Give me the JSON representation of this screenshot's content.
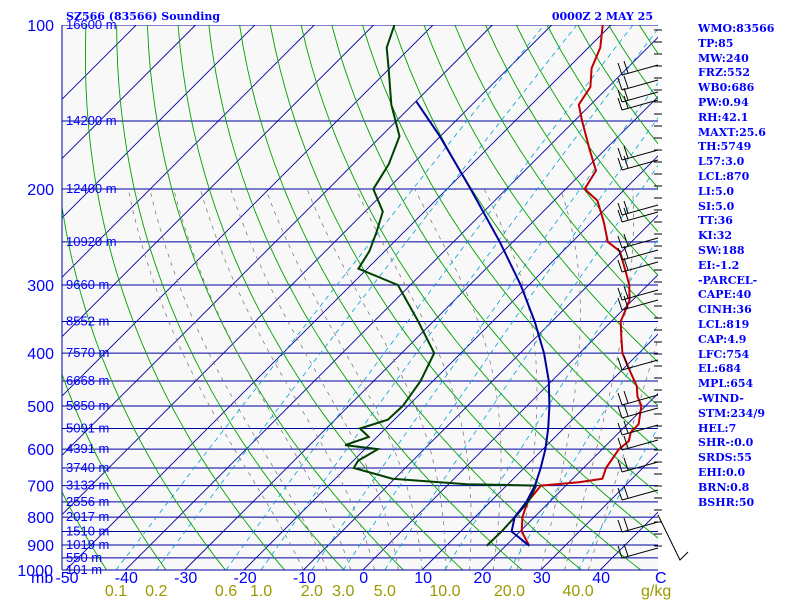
{
  "header": {
    "station": "SZ566 (83566) Sounding",
    "time": "0000Z  2 MAY 25"
  },
  "indices": [
    "WMO:83566",
    "TP:85",
    "MW:240",
    "FRZ:552",
    "WB0:686",
    "PW:0.94",
    "RH:42.1",
    "MAXT:25.6",
    "TH:5749",
    "L57:3.0",
    "LCL:870",
    "LI:5.0",
    "SI:5.0",
    "TT:36",
    "KI:32",
    "SW:188",
    "EI:-1.2",
    "-PARCEL-",
    "CAPE:40",
    "CINH:36",
    "LCL:819",
    "CAP:4.9",
    "LFC:754",
    "EL:684",
    "MPL:654",
    "-WIND-",
    "STM:234/9",
    "HEL:7",
    "SHR-:0.0",
    "SRDS:55",
    "EHI:0.0",
    "BRN:0.8",
    "BSHR:50"
  ],
  "axes": {
    "corner_unit": "mb",
    "right_unit": "C",
    "mix_unit": "g/kg",
    "pressure_labels": [
      "100",
      "200",
      "300",
      "400",
      "500",
      "600",
      "700",
      "800",
      "900",
      "1000"
    ],
    "temperature_labels": [
      "-50",
      "-40",
      "-30",
      "-20",
      "-10",
      "0",
      "10",
      "20",
      "30",
      "40"
    ],
    "mixing_ratio_labels": [
      "0.1",
      "0.2",
      "0.6",
      "1.0",
      "2.0",
      "3.0",
      "5.0",
      "10.0",
      "20.0",
      "40.0"
    ]
  },
  "colors": {
    "temperature": "#c00000",
    "dewpoint": "#004000",
    "parcel": "#0000a0",
    "isobar": "#0000a0",
    "isotherm": "#0000a0",
    "dry_adiabat": "#00a000",
    "moist_adiabat": "#808080",
    "mixing_ratio": "#00a0d0",
    "text": "#0000ff"
  },
  "chart_data": {
    "type": "skew-t",
    "xlabel": "C",
    "ylabel": "mb",
    "pressure_range": [
      1000,
      100
    ],
    "temperature_range": [
      -50,
      50
    ],
    "height_labels": [
      {
        "p": 100,
        "h": "16600 m"
      },
      {
        "p": 150,
        "h": "14200 m"
      },
      {
        "p": 200,
        "h": "12400 m"
      },
      {
        "p": 250,
        "h": "10920 m"
      },
      {
        "p": 300,
        "h": "9660 m"
      },
      {
        "p": 350,
        "h": "8552 m"
      },
      {
        "p": 400,
        "h": "7570 m"
      },
      {
        "p": 450,
        "h": "6668 m"
      },
      {
        "p": 500,
        "h": "5850 m"
      },
      {
        "p": 550,
        "h": "5091 m"
      },
      {
        "p": 600,
        "h": "4391 m"
      },
      {
        "p": 650,
        "h": "3740 m"
      },
      {
        "p": 700,
        "h": "3133 m"
      },
      {
        "p": 750,
        "h": "2556 m"
      },
      {
        "p": 800,
        "h": "2017 m"
      },
      {
        "p": 850,
        "h": "1510 m"
      },
      {
        "p": 900,
        "h": "1019 m"
      },
      {
        "p": 950,
        "h": "550 m"
      },
      {
        "p": 1000,
        "h": "101 m"
      }
    ],
    "series": [
      {
        "values": [
          [
            903,
            24.0
          ],
          [
            850,
            20.3
          ],
          [
            800,
            18.0
          ],
          [
            750,
            16.3
          ],
          [
            700,
            15.8
          ],
          [
            690,
            21.6
          ],
          [
            680,
            25.0
          ],
          [
            650,
            23.8
          ],
          [
            620,
            23.2
          ],
          [
            600,
            22.8
          ],
          [
            580,
            23.1
          ],
          [
            560,
            22.0
          ],
          [
            540,
            21.9
          ],
          [
            500,
            19.3
          ],
          [
            480,
            17.0
          ],
          [
            460,
            15.2
          ],
          [
            430,
            11.3
          ],
          [
            400,
            7.2
          ],
          [
            370,
            3.9
          ],
          [
            350,
            1.6
          ],
          [
            320,
            -0.5
          ],
          [
            300,
            -3.1
          ],
          [
            280,
            -6.6
          ],
          [
            260,
            -10.4
          ],
          [
            250,
            -14.0
          ],
          [
            230,
            -18.0
          ],
          [
            210,
            -22.7
          ],
          [
            200,
            -26.8
          ],
          [
            185,
            -28.0
          ],
          [
            170,
            -32.4
          ],
          [
            150,
            -38.7
          ],
          [
            140,
            -42.0
          ],
          [
            130,
            -43.0
          ],
          [
            120,
            -46.0
          ],
          [
            110,
            -48.0
          ],
          [
            100,
            -51.4
          ]
        ]
      },
      {
        "values": [
          [
            903,
            16.8
          ],
          [
            850,
            16.9
          ],
          [
            800,
            16.7
          ],
          [
            750,
            16.4
          ],
          [
            700,
            15.0
          ],
          [
            696,
            3.1
          ],
          [
            680,
            -10.4
          ],
          [
            650,
            -18.7
          ],
          [
            630,
            -19.2
          ],
          [
            600,
            -17.8
          ],
          [
            590,
            -24.0
          ],
          [
            570,
            -21.4
          ],
          [
            550,
            -24.3
          ],
          [
            530,
            -21.1
          ],
          [
            500,
            -20.9
          ],
          [
            450,
            -22.1
          ],
          [
            400,
            -24.5
          ],
          [
            350,
            -32.5
          ],
          [
            300,
            -42.1
          ],
          [
            280,
            -51.5
          ],
          [
            260,
            -52.6
          ],
          [
            240,
            -54.6
          ],
          [
            220,
            -57.0
          ],
          [
            200,
            -62.4
          ],
          [
            180,
            -64.0
          ],
          [
            160,
            -66.9
          ],
          [
            140,
            -73.6
          ],
          [
            120,
            -80.2
          ],
          [
            110,
            -84.0
          ],
          [
            100,
            -86.5
          ]
        ]
      },
      {
        "values": [
          [
            903,
            24.0
          ],
          [
            850,
            18.6
          ],
          [
            800,
            16.7
          ],
          [
            750,
            16.1
          ],
          [
            700,
            14.8
          ],
          [
            650,
            12.8
          ],
          [
            600,
            10.4
          ],
          [
            550,
            7.4
          ],
          [
            500,
            3.8
          ],
          [
            450,
            -0.5
          ],
          [
            400,
            -6.0
          ],
          [
            350,
            -12.9
          ],
          [
            300,
            -21.4
          ],
          [
            250,
            -32.2
          ],
          [
            200,
            -46.0
          ],
          [
            160,
            -60.1
          ],
          [
            138,
            -70.0
          ]
        ]
      }
    ]
  }
}
